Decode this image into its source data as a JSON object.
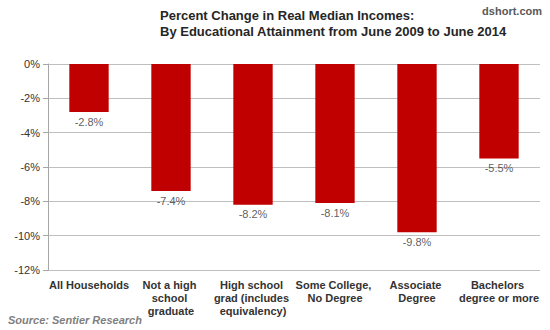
{
  "chart_data": {
    "type": "bar",
    "title": "Percent Change in Real Median Incomes:",
    "subtitle": "By Educational Attainment from June 2009 to June 2014",
    "annotations": [
      "dshort.com",
      "Source: Sentier Research"
    ],
    "categories": [
      "All Households",
      "Not a high school graduate",
      "High school grad (includes equivalency)",
      "Some College, No Degree",
      "Associate Degree",
      "Bachelors degree or more"
    ],
    "values": [
      -2.8,
      -7.4,
      -8.2,
      -8.1,
      -9.8,
      -5.5
    ],
    "value_labels": [
      "-2.8%",
      "-7.4%",
      "-8.2%",
      "-8.1%",
      "-9.8%",
      "-5.5%"
    ],
    "color": "#c00000",
    "ylim": [
      -12,
      0
    ],
    "yticks": [
      {
        "value": -12,
        "label": "-12%"
      },
      {
        "value": -10,
        "label": "-10%"
      },
      {
        "value": -8,
        "label": "-8%"
      },
      {
        "value": -6,
        "label": "-6%"
      },
      {
        "value": -4,
        "label": "-4%"
      },
      {
        "value": -2,
        "label": "-2%"
      },
      {
        "value": 0,
        "label": "0%"
      }
    ],
    "grid": true,
    "data_labels": true
  }
}
